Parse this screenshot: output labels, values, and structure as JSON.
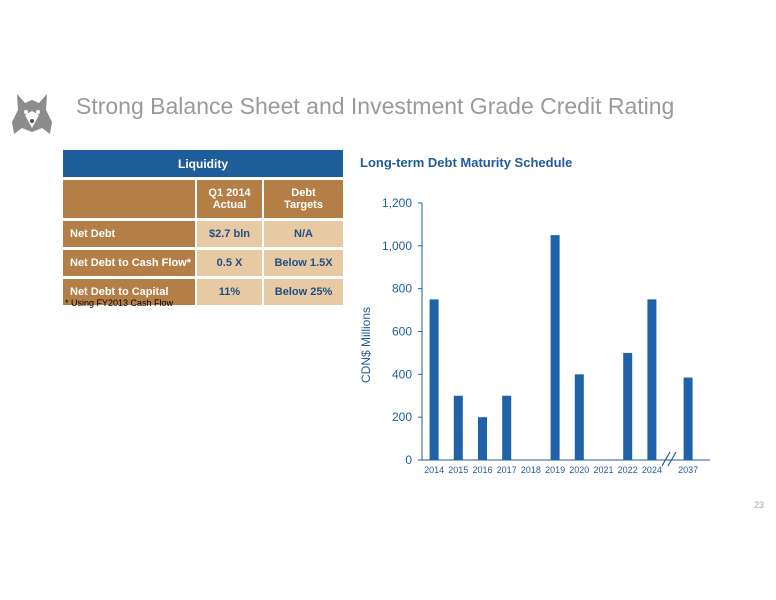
{
  "slide": {
    "title": "Strong Balance Sheet and Investment Grade Credit Rating",
    "page_number": "23"
  },
  "liquidity": {
    "header": "Liquidity",
    "columns": [
      "",
      "Q1 2014\nActual",
      "Debt\nTargets"
    ],
    "rows": [
      {
        "label": "Net Debt",
        "actual": "$2.7 bln",
        "target": "N/A"
      },
      {
        "label": "Net Debt to Cash Flow*",
        "actual": "0.5 X",
        "target": "Below 1.5X"
      },
      {
        "label": "Net Debt to Capital",
        "actual": "11%",
        "target": "Below 25%"
      }
    ],
    "footnote": "* Using FY2013 Cash Flow"
  },
  "chart_data": {
    "type": "bar",
    "title": "Long-term Debt Maturity Schedule",
    "xlabel": "",
    "ylabel": "CDN$ Millions",
    "categories": [
      "2014",
      "2015",
      "2016",
      "2017",
      "2018",
      "2019",
      "2020",
      "2021",
      "2022",
      "2024",
      "2037"
    ],
    "values": [
      750,
      300,
      200,
      300,
      0,
      1050,
      400,
      0,
      500,
      750,
      385
    ],
    "ylim": [
      0,
      1200
    ],
    "yticks": [
      0,
      200,
      400,
      600,
      800,
      1000,
      1200
    ],
    "ytick_labels": [
      "0",
      "200",
      "400",
      "600",
      "800",
      "1,000",
      "1,200"
    ],
    "axis_break_after": "2024",
    "grid": false,
    "bar_color": "#1f62aa",
    "axis_color": "#1f5c9a"
  }
}
